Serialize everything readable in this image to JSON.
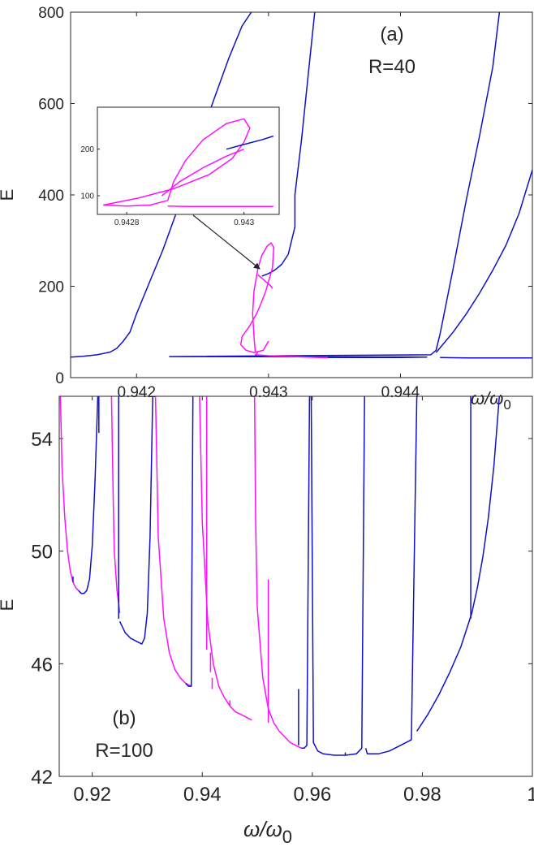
{
  "chart_data": [
    {
      "panel": "a",
      "type": "line",
      "label": "(a)",
      "annotation": "R=40",
      "xlabel": "ω/ω0",
      "xlabel_main": "ω/ω",
      "xlabel_sub": "0",
      "ylabel": "E",
      "xlim": [
        0.9415,
        0.945
      ],
      "ylim": [
        0,
        800
      ],
      "xticks": [
        0.942,
        0.943,
        0.944
      ],
      "xtick_labels": [
        "0.942",
        "0.943",
        "0.944"
      ],
      "yticks": [
        0,
        200,
        400,
        600,
        800
      ],
      "ytick_labels": [
        "0",
        "200",
        "400",
        "600",
        "800"
      ],
      "colors": {
        "blue": "#1010c8",
        "magenta": "#ff10ff"
      },
      "series": [
        {
          "color": "blue",
          "x": [
            0.9415,
            0.9416,
            0.9417,
            0.9418,
            0.94185,
            0.9419,
            0.94195,
            0.942,
            0.9421,
            0.9422,
            0.9423,
            0.9424,
            0.9425,
            0.9426,
            0.9427,
            0.9428,
            0.94287
          ],
          "y": [
            45,
            47,
            50,
            56,
            64,
            80,
            100,
            140,
            210,
            280,
            360,
            450,
            540,
            620,
            700,
            770,
            800
          ]
        },
        {
          "color": "blue",
          "x": [
            0.94295,
            0.943,
            0.94305,
            0.9431,
            0.94315,
            0.9432,
            0.9432,
            0.94325,
            0.9433,
            0.94335
          ],
          "y": [
            222,
            228,
            236,
            248,
            270,
            330,
            400,
            520,
            660,
            800
          ]
        },
        {
          "color": "blue",
          "x": [
            0.94345,
            0.9437,
            0.944,
            0.9442,
            0.94225,
            0.94423,
            0.94427,
            0.9443,
            0.9444,
            0.9445,
            0.9446,
            0.9447,
            0.94475
          ],
          "y": [
            44,
            44,
            44,
            45,
            46,
            50,
            60,
            95,
            240,
            390,
            530,
            680,
            800
          ]
        },
        {
          "color": "blue",
          "x": [
            0.94427,
            0.9443,
            0.9444,
            0.9445,
            0.9446,
            0.9447,
            0.9448,
            0.9449,
            0.945
          ],
          "y": [
            55,
            65,
            100,
            140,
            185,
            235,
            290,
            360,
            455
          ]
        },
        {
          "color": "blue",
          "x": [
            0.9443,
            0.9445,
            0.9447,
            0.945
          ],
          "y": [
            44,
            43,
            43,
            43
          ]
        },
        {
          "color": "magenta",
          "x": [
            0.94345,
            0.9434,
            0.9433,
            0.9432,
            0.9431,
            0.943,
            0.9429,
            0.94292
          ],
          "y": [
            44,
            44,
            45,
            46,
            47,
            48,
            50,
            55
          ]
        },
        {
          "color": "magenta",
          "x": [
            0.9429,
            0.94289,
            0.94288,
            0.94289,
            0.94292,
            0.94295,
            0.94299,
            0.94302,
            0.94304,
            0.94303,
            0.94298,
            0.94294,
            0.94291,
            0.94288,
            0.94285,
            0.9428,
            0.94279,
            0.94283,
            0.94289,
            0.94296,
            0.943
          ],
          "y": [
            55,
            90,
            140,
            190,
            240,
            268,
            288,
            295,
            285,
            240,
            190,
            160,
            140,
            125,
            110,
            90,
            72,
            60,
            55,
            60,
            80
          ]
        },
        {
          "color": "magenta",
          "x": [
            0.94292,
            0.94296,
            0.943,
            0.94302,
            0.94303
          ],
          "y": [
            225,
            215,
            205,
            200,
            195
          ]
        }
      ],
      "inset": {
        "xlim": [
          0.94275,
          0.94306
        ],
        "ylim": [
          60,
          290
        ],
        "xticks": [
          0.9428,
          0.943
        ],
        "xtick_labels": [
          "0.9428",
          "0.943"
        ],
        "yticks": [
          100,
          200
        ],
        "ytick_labels": [
          "100",
          "200"
        ],
        "series": [
          {
            "color": "magenta",
            "x": [
              0.94276,
              0.94282,
              0.94288,
              0.94294,
              0.94298,
              0.943,
              0.94301,
              0.943,
              0.94297,
              0.94293,
              0.9429,
              0.94288,
              0.94287,
              0.94284,
              0.9428,
              0.94276
            ],
            "y": [
              80,
              95,
              115,
              145,
              180,
              215,
              245,
              265,
              255,
              220,
              175,
              130,
              90,
              80,
              78,
              80
            ]
          },
          {
            "color": "magenta",
            "x": [
              0.94287,
              0.9429,
              0.94295,
              0.943,
              0.94303,
              0.94305
            ],
            "y": [
              78,
              77,
              77,
              77,
              77,
              77
            ]
          },
          {
            "color": "magenta",
            "x": [
              0.94286,
              0.94289,
              0.94293,
              0.94297,
              0.943
            ],
            "y": [
              100,
              130,
              160,
              185,
              200
            ]
          },
          {
            "color": "blue",
            "x": [
              0.94297,
              0.943,
              0.94303,
              0.94305
            ],
            "y": [
              200,
              210,
              220,
              228
            ]
          }
        ]
      }
    },
    {
      "panel": "b",
      "type": "line",
      "label": "(b)",
      "annotation": "R=100",
      "xlabel": "ω/ω0",
      "xlabel_main": "ω/ω",
      "xlabel_sub": "0",
      "ylabel": "E",
      "xlim": [
        0.914,
        1.0
      ],
      "ylim": [
        42,
        55.5
      ],
      "xticks": [
        0.92,
        0.94,
        0.96,
        0.98,
        1.0
      ],
      "xtick_labels": [
        "0.92",
        "0.94",
        "0.96",
        "0.98",
        "1"
      ],
      "yticks": [
        42,
        46,
        50,
        54
      ],
      "ytick_labels": [
        "42",
        "46",
        "50",
        "54"
      ],
      "colors": {
        "blue": "#1010c8",
        "magenta": "#ff10ff"
      },
      "series": [
        {
          "color": "magenta",
          "x": [
            0.9142,
            0.9145,
            0.915,
            0.9155,
            0.916,
            0.9165,
            0.917,
            0.9175
          ],
          "y": [
            55.5,
            53.0,
            51.2,
            50.0,
            49.3,
            48.9,
            48.7,
            48.6
          ]
        },
        {
          "color": "blue",
          "x": [
            0.9175,
            0.918,
            0.9185,
            0.919,
            0.9195,
            0.92,
            0.9205,
            0.921
          ],
          "y": [
            48.6,
            48.5,
            48.5,
            48.6,
            49.0,
            50.2,
            52.5,
            55.5
          ]
        },
        {
          "color": "magenta",
          "x": [
            0.9235,
            0.9238,
            0.924,
            0.9245,
            0.925
          ],
          "y": [
            55.5,
            52.0,
            50.0,
            48.6,
            47.8
          ]
        },
        {
          "color": "blue",
          "x": [
            0.925,
            0.926,
            0.927,
            0.928,
            0.929,
            0.9295,
            0.93,
            0.9305,
            0.931
          ],
          "y": [
            47.5,
            47.1,
            46.9,
            46.8,
            46.7,
            46.9,
            47.8,
            50.5,
            55.5
          ]
        },
        {
          "color": "magenta",
          "x": [
            0.9315,
            0.932,
            0.933,
            0.934,
            0.935,
            0.936,
            0.937,
            0.938
          ],
          "y": [
            55.5,
            50.5,
            47.6,
            46.4,
            45.8,
            45.5,
            45.3,
            45.2
          ]
        },
        {
          "color": "blue",
          "x": [
            0.937,
            0.9375,
            0.938,
            0.9383
          ],
          "y": [
            45.3,
            45.2,
            45.2,
            55.5
          ]
        },
        {
          "color": "magenta",
          "x": [
            0.9395,
            0.94,
            0.941,
            0.942,
            0.943,
            0.944,
            0.945,
            0.946,
            0.947,
            0.948,
            0.949
          ],
          "y": [
            55.5,
            51.0,
            47.5,
            46.0,
            45.2,
            44.8,
            44.5,
            44.3,
            44.2,
            44.1,
            44.0
          ]
        },
        {
          "color": "magenta",
          "x": [
            0.9495,
            0.9497,
            0.95,
            0.951,
            0.952,
            0.953,
            0.954,
            0.955,
            0.956,
            0.957,
            0.958
          ],
          "y": [
            55.5,
            51.0,
            48.0,
            45.5,
            44.4,
            43.9,
            43.6,
            43.4,
            43.2,
            43.1,
            43.0
          ]
        },
        {
          "color": "blue",
          "x": [
            0.958,
            0.9585,
            0.959,
            0.9595,
            0.96
          ],
          "y": [
            43.0,
            43.0,
            43.1,
            55.5,
            55.5
          ]
        },
        {
          "color": "blue",
          "x": [
            0.9598,
            0.9602,
            0.961,
            0.962,
            0.964,
            0.966,
            0.968,
            0.969,
            0.9695
          ],
          "y": [
            55.5,
            43.2,
            42.9,
            42.8,
            42.75,
            42.75,
            42.8,
            43.0,
            55.5
          ]
        },
        {
          "color": "blue",
          "x": [
            0.9697,
            0.97,
            0.972,
            0.974,
            0.976,
            0.978,
            0.979
          ],
          "y": [
            43.0,
            42.8,
            42.8,
            42.9,
            43.1,
            43.3,
            55.5
          ]
        },
        {
          "color": "blue",
          "x": [
            0.979,
            0.981,
            0.983,
            0.985,
            0.987,
            0.989,
            0.99,
            0.991,
            0.992,
            0.993,
            0.994
          ],
          "y": [
            43.6,
            44.2,
            44.9,
            45.7,
            46.6,
            47.8,
            48.7,
            49.8,
            51.2,
            53.0,
            55.5
          ]
        }
      ],
      "spikes": [
        {
          "color": "blue",
          "x": 0.9165,
          "y0": 48.9,
          "y1": 49.1
        },
        {
          "color": "blue",
          "x": 0.9212,
          "y0": 55.5,
          "y1": 54.2
        },
        {
          "color": "blue",
          "x": 0.9248,
          "y0": 47.6,
          "y1": 55.5
        },
        {
          "color": "magenta",
          "x": 0.9408,
          "y0": 46.5,
          "y1": 55.5
        },
        {
          "color": "magenta",
          "x": 0.9415,
          "y0": 45.7,
          "y1": 46.4
        },
        {
          "color": "magenta",
          "x": 0.9418,
          "y0": 45.1,
          "y1": 45.5
        },
        {
          "color": "magenta",
          "x": 0.945,
          "y0": 44.5,
          "y1": 44.7
        },
        {
          "color": "magenta",
          "x": 0.952,
          "y0": 43.9,
          "y1": 49.0
        },
        {
          "color": "blue",
          "x": 0.9575,
          "y0": 43.1,
          "y1": 45.1
        },
        {
          "color": "blue",
          "x": 0.966,
          "y0": 42.75,
          "y1": 42.85
        },
        {
          "color": "blue",
          "x": 0.9888,
          "y0": 47.6,
          "y1": 55.5
        }
      ]
    }
  ]
}
